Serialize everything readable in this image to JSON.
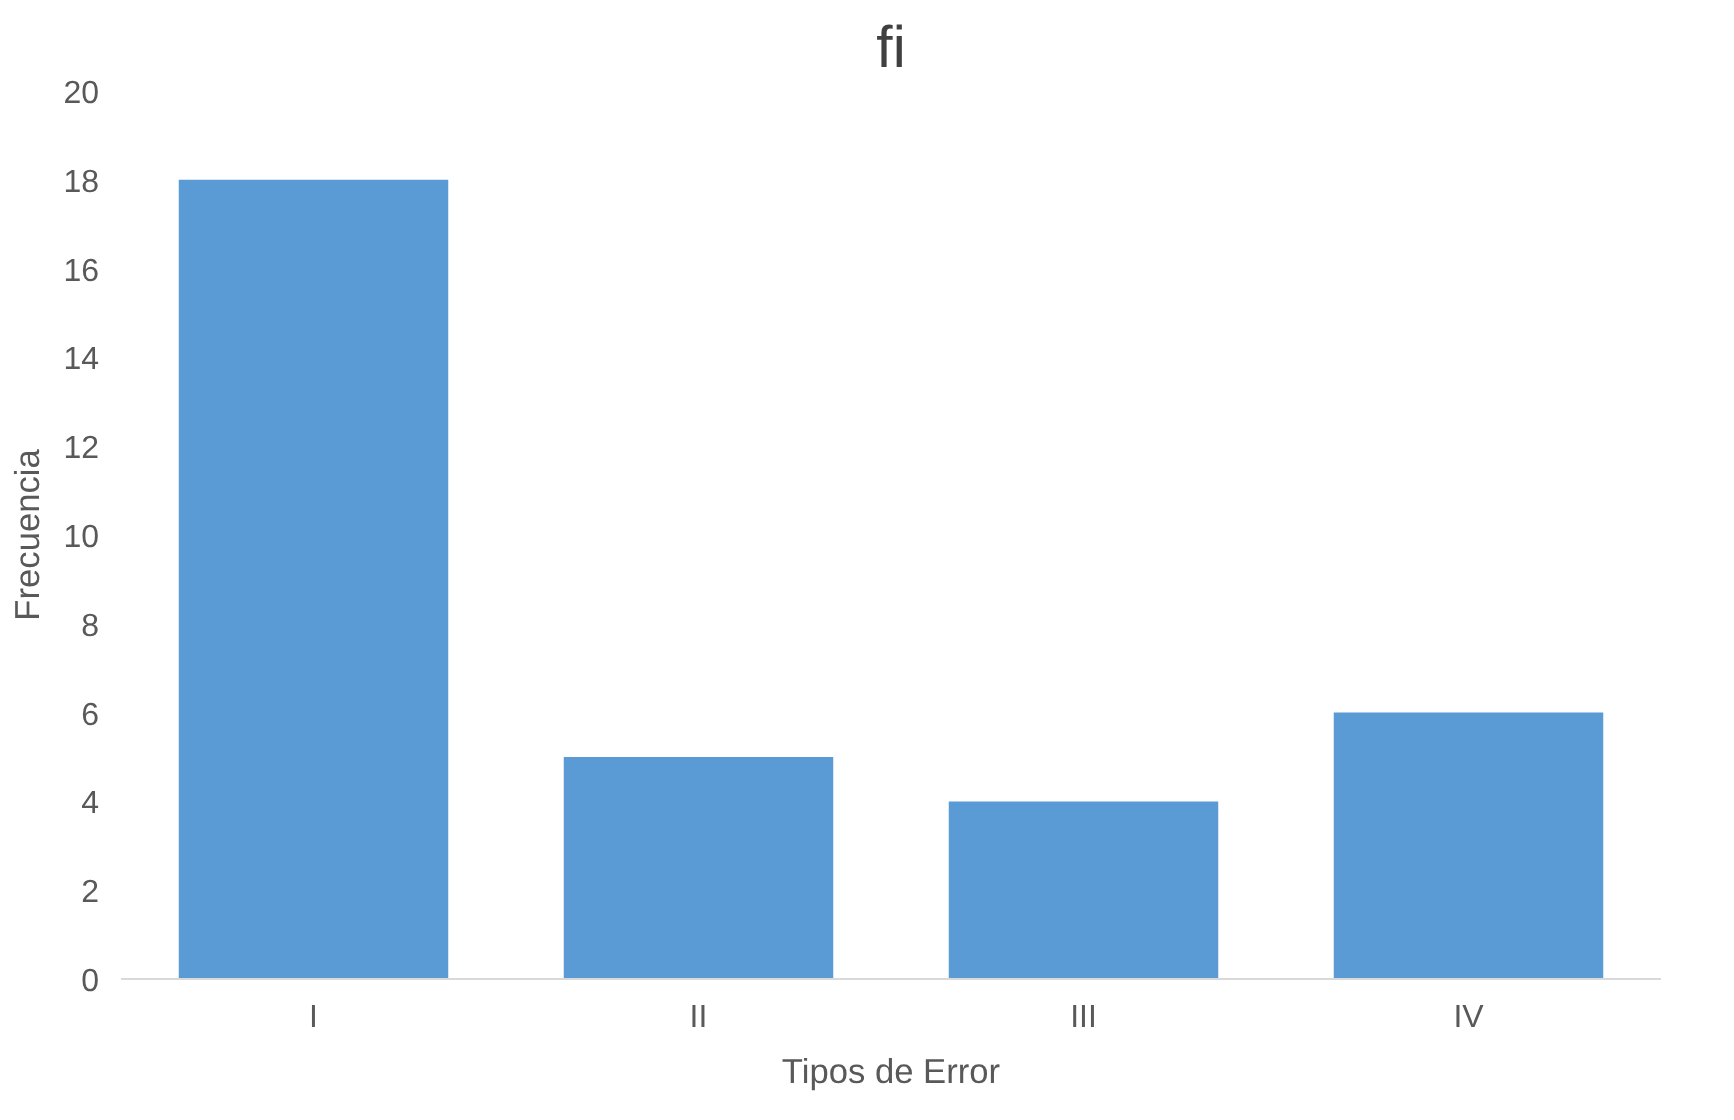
{
  "chart_data": {
    "type": "bar",
    "title": "fi",
    "xlabel": "Tipos de Error",
    "ylabel": "Frecuencia",
    "categories": [
      "I",
      "II",
      "III",
      "IV"
    ],
    "values": [
      18,
      5,
      4,
      6
    ],
    "color": "#5b9bd5",
    "ylim": [
      0,
      20
    ],
    "yticks": [
      0,
      2,
      4,
      6,
      8,
      10,
      12,
      14,
      16,
      18,
      20
    ],
    "grid": false
  }
}
